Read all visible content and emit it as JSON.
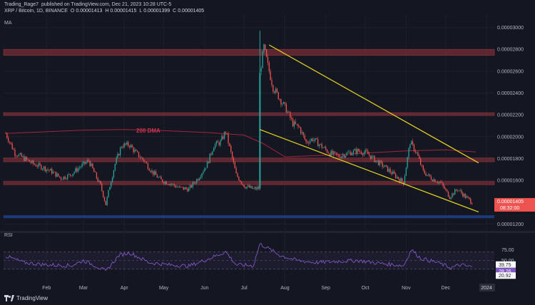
{
  "header": {
    "author": "Trading_Rage7",
    "published_on": "published on TradingView.com, Dec 21, 2023 10:28 UTC-5",
    "symbol": "XRP / Bitcoin, 1D, BINANCE",
    "o_label": "O",
    "o_value": "0.00001413",
    "h_label": "H",
    "h_value": "0.00001415",
    "l_label": "L",
    "l_value": "0.00001399",
    "c_label": "C",
    "c_value": "0.00001405",
    "ma_label": "MA"
  },
  "footer": {
    "brand": "TradingView"
  },
  "colors": {
    "bg": "#141722",
    "up": "#26a69a",
    "down": "#ef5350",
    "zone": "#6b2a33",
    "support": "#1f3a7a",
    "channel": "#e8d51e",
    "ma": "#a0243e",
    "rsi": "#7e57c2"
  },
  "chart_data": [
    {
      "type": "candlestick",
      "title": "XRP / Bitcoin, 1D, BINANCE",
      "x_ticks": [
        "Feb",
        "Mar",
        "Apr",
        "May",
        "Jun",
        "Jul",
        "Aug",
        "Sep",
        "Oct",
        "Nov",
        "Dec",
        "2024"
      ],
      "y_ticks": [
        "0.00003000",
        "0.00002800",
        "0.00002600",
        "0.00002400",
        "0.00002200",
        "0.00002000",
        "0.00001800",
        "0.00001600",
        "0.00001200"
      ],
      "ylim": [
        1.15e-05,
        3.03e-05
      ],
      "last_price_label": "0.00001405",
      "countdown_label": "08:32:00",
      "annotation": "200 DMA",
      "resistance_zones": [
        [
          2.745e-05,
          2.8e-05
        ],
        [
          2.195e-05,
          2.22e-05
        ],
        [
          1.77e-05,
          1.805e-05
        ],
        [
          1.56e-05,
          1.59e-05
        ]
      ],
      "support_zone": [
        1.26e-05,
        1.28e-05
      ],
      "channel_upper": [
        [
          "2023-07-20",
          2.84e-05
        ],
        [
          "2023-12-26",
          1.76e-05
        ]
      ],
      "channel_lower": [
        [
          "2023-07-13",
          2.065e-05
        ],
        [
          "2023-12-26",
          1.31e-05
        ]
      ],
      "ma_200": [
        [
          "2023-01-01",
          2.03e-05
        ],
        [
          "2023-02-01",
          2.045e-05
        ],
        [
          "2023-03-01",
          2.06e-05
        ],
        [
          "2023-04-01",
          2.065e-05
        ],
        [
          "2023-05-01",
          2.055e-05
        ],
        [
          "2023-06-01",
          2.04e-05
        ],
        [
          "2023-07-01",
          2.015e-05
        ],
        [
          "2023-07-15",
          1.94e-05
        ],
        [
          "2023-08-01",
          1.815e-05
        ],
        [
          "2023-09-01",
          1.83e-05
        ],
        [
          "2023-10-01",
          1.85e-05
        ],
        [
          "2023-11-01",
          1.87e-05
        ],
        [
          "2023-12-01",
          1.88e-05
        ],
        [
          "2023-12-24",
          1.86e-05
        ]
      ],
      "closes": [
        [
          "2023-01-01",
          2.03e-05
        ],
        [
          "2023-01-08",
          1.85e-05
        ],
        [
          "2023-01-15",
          1.8e-05
        ],
        [
          "2023-01-22",
          1.75e-05
        ],
        [
          "2023-01-29",
          1.72e-05
        ],
        [
          "2023-02-05",
          1.68e-05
        ],
        [
          "2023-02-12",
          1.62e-05
        ],
        [
          "2023-02-19",
          1.65e-05
        ],
        [
          "2023-02-26",
          1.72e-05
        ],
        [
          "2023-03-05",
          1.78e-05
        ],
        [
          "2023-03-10",
          1.65e-05
        ],
        [
          "2023-03-14",
          1.55e-05
        ],
        [
          "2023-03-18",
          1.38e-05
        ],
        [
          "2023-03-21",
          1.55e-05
        ],
        [
          "2023-03-25",
          1.75e-05
        ],
        [
          "2023-03-30",
          1.92e-05
        ],
        [
          "2023-04-05",
          1.925e-05
        ],
        [
          "2023-04-10",
          1.85e-05
        ],
        [
          "2023-04-16",
          1.78e-05
        ],
        [
          "2023-04-22",
          1.68e-05
        ],
        [
          "2023-04-29",
          1.6e-05
        ],
        [
          "2023-05-06",
          1.57e-05
        ],
        [
          "2023-05-13",
          1.53e-05
        ],
        [
          "2023-05-20",
          1.52e-05
        ],
        [
          "2023-05-27",
          1.62e-05
        ],
        [
          "2023-06-03",
          1.75e-05
        ],
        [
          "2023-06-08",
          1.92e-05
        ],
        [
          "2023-06-13",
          1.95e-05
        ],
        [
          "2023-06-17",
          2.05e-05
        ],
        [
          "2023-06-21",
          1.85e-05
        ],
        [
          "2023-06-25",
          1.65e-05
        ],
        [
          "2023-07-01",
          1.55e-05
        ],
        [
          "2023-07-08",
          1.52e-05
        ],
        [
          "2023-07-12",
          1.53e-05
        ],
        [
          "2023-07-13",
          2.58e-05
        ],
        [
          "2023-07-16",
          2.82e-05
        ],
        [
          "2023-07-19",
          2.65e-05
        ],
        [
          "2023-07-23",
          2.45e-05
        ],
        [
          "2023-07-28",
          2.35e-05
        ],
        [
          "2023-08-02",
          2.25e-05
        ],
        [
          "2023-08-07",
          2.12e-05
        ],
        [
          "2023-08-12",
          2.08e-05
        ],
        [
          "2023-08-17",
          1.95e-05
        ],
        [
          "2023-08-22",
          1.98e-05
        ],
        [
          "2023-08-28",
          1.92e-05
        ],
        [
          "2023-09-04",
          1.85e-05
        ],
        [
          "2023-09-11",
          1.82e-05
        ],
        [
          "2023-09-18",
          1.85e-05
        ],
        [
          "2023-09-25",
          1.87e-05
        ],
        [
          "2023-10-02",
          1.85e-05
        ],
        [
          "2023-10-09",
          1.78e-05
        ],
        [
          "2023-10-16",
          1.72e-05
        ],
        [
          "2023-10-23",
          1.65e-05
        ],
        [
          "2023-10-30",
          1.58e-05
        ],
        [
          "2023-11-04",
          1.95e-05
        ],
        [
          "2023-11-09",
          1.85e-05
        ],
        [
          "2023-11-14",
          1.68e-05
        ],
        [
          "2023-11-20",
          1.62e-05
        ],
        [
          "2023-11-27",
          1.58e-05
        ],
        [
          "2023-12-04",
          1.45e-05
        ],
        [
          "2023-12-10",
          1.52e-05
        ],
        [
          "2023-12-16",
          1.45e-05
        ],
        [
          "2023-12-21",
          1.4e-05
        ]
      ]
    },
    {
      "type": "line",
      "title": "RSI",
      "y_ticks": [
        "75.00",
        "50.00",
        "25.00"
      ],
      "ylim": [
        0,
        100
      ],
      "band": [
        30,
        70
      ],
      "value_labels": [
        "39.75",
        "28.26",
        "20.92"
      ],
      "values": [
        [
          "2023-01-01",
          60
        ],
        [
          "2023-01-15",
          45
        ],
        [
          "2023-02-01",
          40
        ],
        [
          "2023-02-20",
          38
        ],
        [
          "2023-03-01",
          50
        ],
        [
          "2023-03-12",
          35
        ],
        [
          "2023-03-18",
          25
        ],
        [
          "2023-03-28",
          62
        ],
        [
          "2023-04-05",
          68
        ],
        [
          "2023-04-20",
          45
        ],
        [
          "2023-05-05",
          40
        ],
        [
          "2023-05-20",
          37
        ],
        [
          "2023-06-05",
          55
        ],
        [
          "2023-06-17",
          70
        ],
        [
          "2023-06-25",
          40
        ],
        [
          "2023-07-08",
          38
        ],
        [
          "2023-07-13",
          88
        ],
        [
          "2023-07-18",
          80
        ],
        [
          "2023-07-28",
          62
        ],
        [
          "2023-08-10",
          50
        ],
        [
          "2023-08-25",
          45
        ],
        [
          "2023-09-10",
          48
        ],
        [
          "2023-09-25",
          50
        ],
        [
          "2023-10-10",
          44
        ],
        [
          "2023-10-30",
          38
        ],
        [
          "2023-11-05",
          75
        ],
        [
          "2023-11-12",
          55
        ],
        [
          "2023-11-25",
          45
        ],
        [
          "2023-12-05",
          33
        ],
        [
          "2023-12-12",
          40
        ],
        [
          "2023-12-21",
          35
        ]
      ]
    }
  ]
}
